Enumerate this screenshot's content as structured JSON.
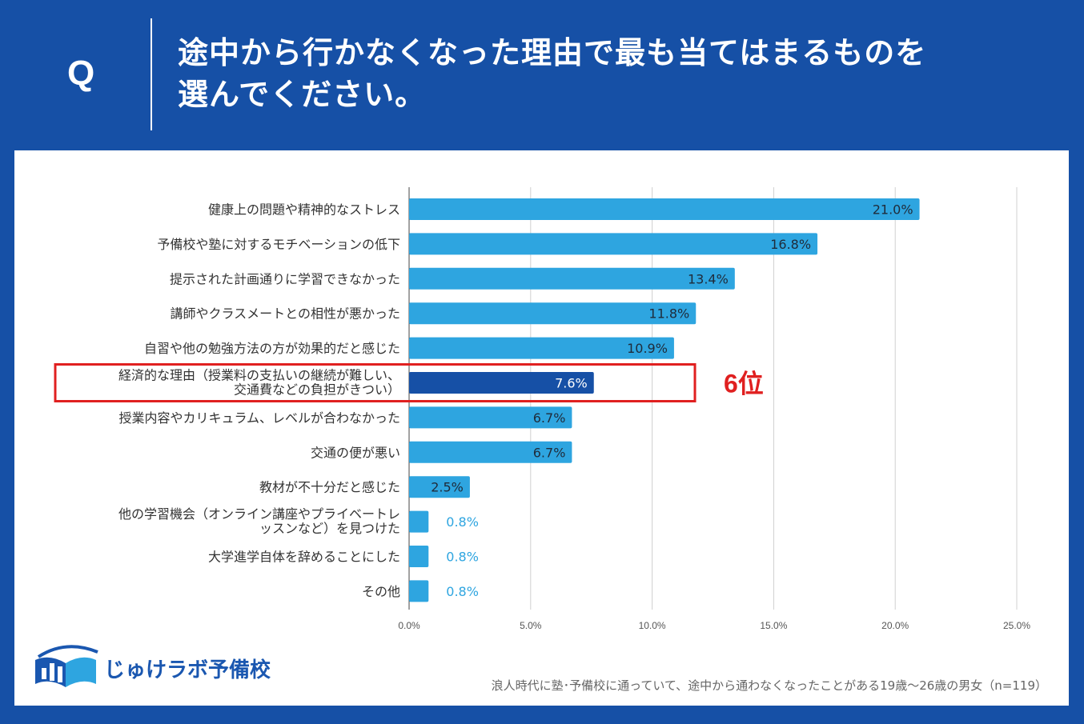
{
  "header": {
    "q_mark": "Q",
    "title_line1": "途中から行かなくなった理由で最も当てはまるものを",
    "title_line2": "選んでください。"
  },
  "colors": {
    "background": "#1650a6",
    "bar": "#2ea5e0",
    "highlight_bar": "#1650a6",
    "highlight_box": "#e02020",
    "logo": "#1a57b0"
  },
  "highlight": {
    "index": 5,
    "rank_label": "6位"
  },
  "chart_data": {
    "type": "bar",
    "orientation": "horizontal",
    "categories": [
      [
        "健康上の問題や精神的なストレス"
      ],
      [
        "予備校や塾に対するモチベーションの低下"
      ],
      [
        "提示された計画通りに学習できなかった"
      ],
      [
        "講師やクラスメートとの相性が悪かった"
      ],
      [
        "自習や他の勉強方法の方が効果的だと感じた"
      ],
      [
        "経済的な理由（授業料の支払いの継続が難しい、",
        "交通費などの負担がきつい）"
      ],
      [
        "授業内容やカリキュラム、レベルが合わなかった"
      ],
      [
        "交通の便が悪い"
      ],
      [
        "教材が不十分だと感じた"
      ],
      [
        "他の学習機会（オンライン講座やプライベートレ",
        "ッスンなど）を見つけた"
      ],
      [
        "大学進学自体を辞めることにした"
      ],
      [
        "その他"
      ]
    ],
    "values": [
      21.0,
      16.8,
      13.4,
      11.8,
      10.9,
      7.6,
      6.7,
      6.7,
      2.5,
      0.8,
      0.8,
      0.8
    ],
    "value_labels": [
      "21.0%",
      "16.8%",
      "13.4%",
      "11.8%",
      "10.9%",
      "7.6%",
      "6.7%",
      "6.7%",
      "2.5%",
      "0.8%",
      "0.8%",
      "0.8%"
    ],
    "xlim": [
      0,
      25
    ],
    "xticks": [
      0,
      5,
      10,
      15,
      20,
      25
    ],
    "xtick_labels": [
      "0.0%",
      "5.0%",
      "10.0%",
      "15.0%",
      "20.0%",
      "25.0%"
    ],
    "grid": true,
    "title": "途中から行かなくなった理由で最も当てはまるものを選んでください。"
  },
  "logo": {
    "text": "じゅけラボ予備校"
  },
  "footnote": "浪人時代に塾･予備校に通っていて、途中から通わなくなったことがある19歳～26歳の男女（n=119）"
}
